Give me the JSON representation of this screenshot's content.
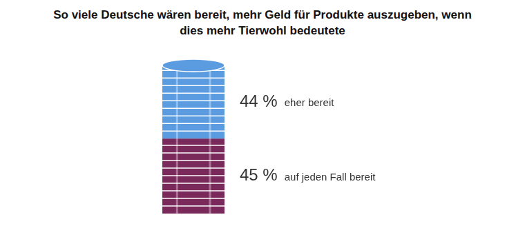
{
  "chart_data": {
    "type": "bar",
    "title": "So viele Deutsche wären bereit, mehr Geld für Produkte auszugeben, wenn dies mehr Tierwohl bedeutete",
    "categories": [
      null
    ],
    "stacked": true,
    "grid": false,
    "tick_labels": false,
    "data_labels": true,
    "series": [
      {
        "name": "auf jeden Fall bereit",
        "color": "#7a2a5a",
        "values": [
          45
        ],
        "value_labels": [
          "45 %"
        ]
      },
      {
        "name": "eher bereit",
        "color": "#5b9be0",
        "values": [
          44
        ],
        "value_labels": [
          "44 %"
        ]
      }
    ]
  }
}
